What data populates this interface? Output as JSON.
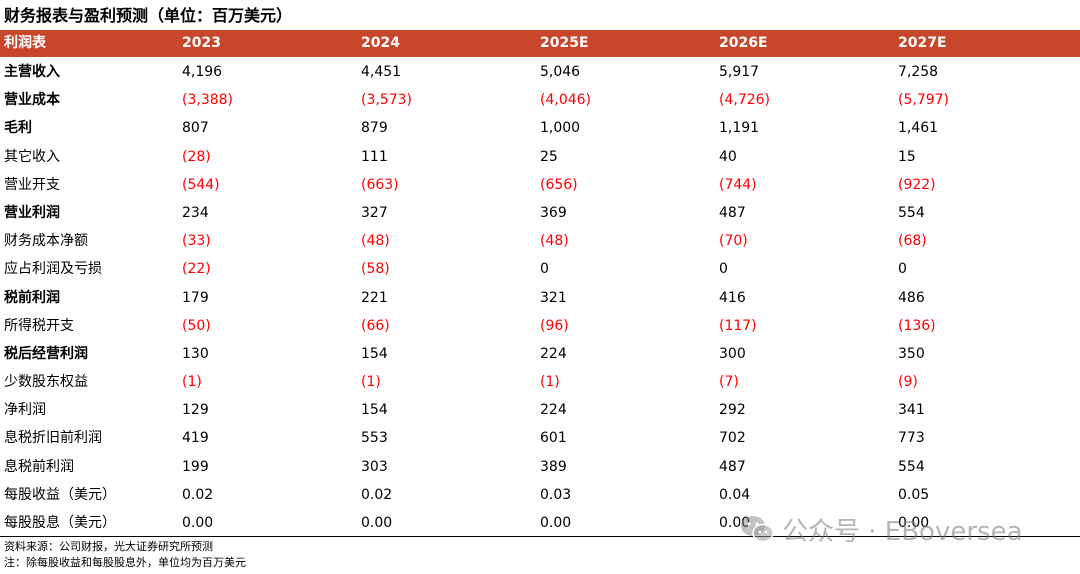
{
  "title": "财务报表与盈利预测（单位：百万美元）",
  "header": [
    "利润表",
    "2023",
    "2024",
    "2025E",
    "2026E",
    "2027E"
  ],
  "rows": [
    {
      "label": "主营收入",
      "bold": true,
      "values": [
        "4,196",
        "4,451",
        "5,046",
        "5,917",
        "7,258"
      ]
    },
    {
      "label": "营业成本",
      "bold": true,
      "values": [
        "(3,388)",
        "(3,573)",
        "(4,046)",
        "(4,726)",
        "(5,797)"
      ]
    },
    {
      "label": "毛利",
      "bold": true,
      "values": [
        "807",
        "879",
        "1,000",
        "1,191",
        "1,461"
      ]
    },
    {
      "label": "其它收入",
      "bold": false,
      "values": [
        "(28)",
        "111",
        "25",
        "40",
        "15"
      ]
    },
    {
      "label": "营业开支",
      "bold": false,
      "values": [
        "(544)",
        "(663)",
        "(656)",
        "(744)",
        "(922)"
      ]
    },
    {
      "label": "营业利润",
      "bold": true,
      "values": [
        "234",
        "327",
        "369",
        "487",
        "554"
      ]
    },
    {
      "label": "财务成本净额",
      "bold": false,
      "values": [
        "(33)",
        "(48)",
        "(48)",
        "(70)",
        "(68)"
      ]
    },
    {
      "label": "应占利润及亏损",
      "bold": false,
      "values": [
        "(22)",
        "(58)",
        "0",
        "0",
        "0"
      ]
    },
    {
      "label": "税前利润",
      "bold": true,
      "values": [
        "179",
        "221",
        "321",
        "416",
        "486"
      ]
    },
    {
      "label": "所得税开支",
      "bold": false,
      "values": [
        "(50)",
        "(66)",
        "(96)",
        "(117)",
        "(136)"
      ]
    },
    {
      "label": "税后经营利润",
      "bold": true,
      "values": [
        "130",
        "154",
        "224",
        "300",
        "350"
      ]
    },
    {
      "label": "少数股东权益",
      "bold": false,
      "values": [
        "(1)",
        "(1)",
        "(1)",
        "(7)",
        "(9)"
      ]
    },
    {
      "label": "净利润",
      "bold": false,
      "values": [
        "129",
        "154",
        "224",
        "292",
        "341"
      ]
    },
    {
      "label": "息税折旧前利润",
      "bold": false,
      "values": [
        "419",
        "553",
        "601",
        "702",
        "773"
      ]
    },
    {
      "label": "息税前利润",
      "bold": false,
      "values": [
        "199",
        "303",
        "389",
        "487",
        "554"
      ]
    },
    {
      "label": "每股收益（美元）",
      "bold": false,
      "values": [
        "0.02",
        "0.02",
        "0.03",
        "0.04",
        "0.05"
      ]
    },
    {
      "label": "每股股息（美元）",
      "bold": false,
      "values": [
        "0.00",
        "0.00",
        "0.00",
        "0.00",
        "0.00"
      ]
    }
  ],
  "notes": {
    "source": "资料来源：公司财报，光大证券研究所预测",
    "note": "注：除每股收益和每股股息外，单位均为百万美元"
  },
  "watermark": {
    "text": "公众号 · EBoversea",
    "icon": "wechat-icon"
  },
  "colors": {
    "header_bg": "#c8462b",
    "negative": "#ff0000"
  }
}
